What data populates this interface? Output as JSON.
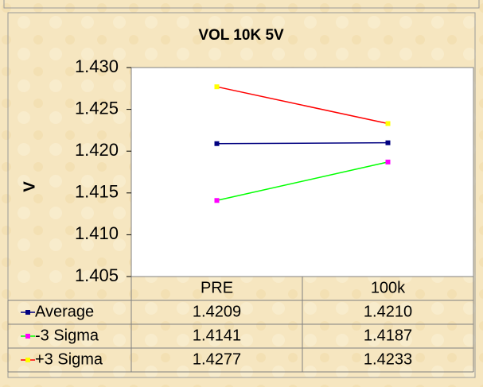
{
  "chart_data": {
    "type": "line",
    "title": "VOL 10K 5V",
    "y_label": "V",
    "categories": [
      "PRE",
      "100k"
    ],
    "series": [
      {
        "name": "Average",
        "color": "#000080",
        "marker_color": "#000080",
        "values": [
          1.4209,
          1.421
        ],
        "value_labels": [
          "1.4209",
          "1.4210"
        ]
      },
      {
        "name": "-3 Sigma",
        "color": "#00ff00",
        "marker_color": "#ff00ff",
        "values": [
          1.4141,
          1.4187
        ]
      },
      {
        "name": "+3 Sigma",
        "color": "#ff0000",
        "marker_color": "#ffff00",
        "values": [
          1.4277,
          1.4233
        ]
      }
    ],
    "ylim": [
      1.405,
      1.43
    ],
    "yticks": [
      1.405,
      {
        "value": 1.41,
        "label": "1.410"
      },
      1.415,
      {
        "value": 1.42,
        "label": "1.420"
      },
      1.425,
      {
        "value": 1.43,
        "label": "1.430"
      }
    ],
    "grid": false,
    "data_table": true
  }
}
